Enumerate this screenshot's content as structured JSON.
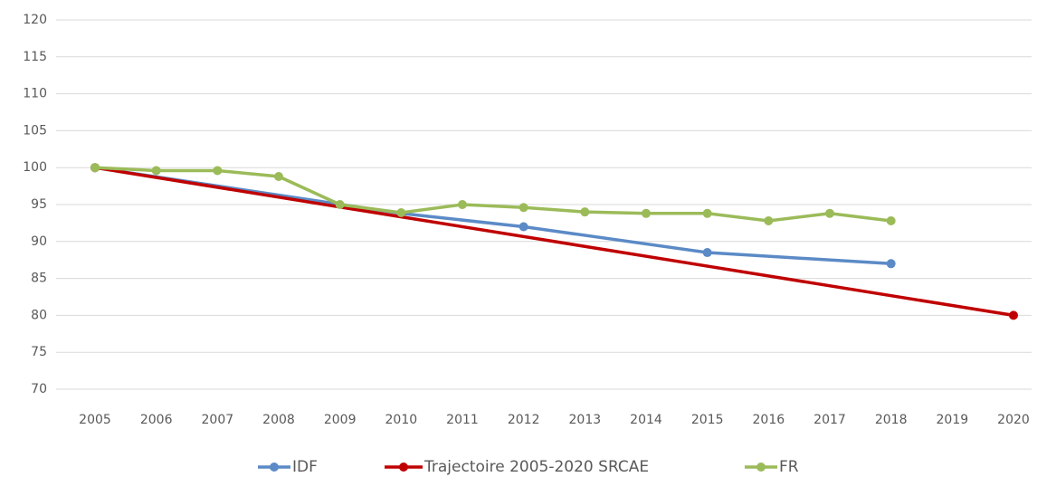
{
  "chart_data": {
    "type": "line",
    "xlim": [
      2005,
      2020
    ],
    "xticks": [
      2005,
      2006,
      2007,
      2008,
      2009,
      2010,
      2011,
      2012,
      2013,
      2014,
      2015,
      2016,
      2017,
      2018,
      2019,
      2020
    ],
    "ylim": [
      70,
      120
    ],
    "yticks": [
      70,
      75,
      80,
      85,
      90,
      95,
      100,
      105,
      110,
      115,
      120
    ],
    "grid": true,
    "legend": "bottom",
    "series": [
      {
        "name": "IDF",
        "color": "#5b8ac6",
        "x": [
          2005,
          2010,
          2012,
          2015,
          2018
        ],
        "values": [
          100,
          93.8,
          92,
          88.5,
          87
        ]
      },
      {
        "name": "Trajectoire 2005-2020 SRCAE",
        "color": "#c00000",
        "x": [
          2005,
          2020
        ],
        "values": [
          100,
          80
        ]
      },
      {
        "name": "FR",
        "color": "#9bbb59",
        "x": [
          2005,
          2006,
          2007,
          2008,
          2009,
          2010,
          2011,
          2012,
          2013,
          2014,
          2015,
          2016,
          2017,
          2018
        ],
        "values": [
          100,
          99.6,
          99.6,
          98.8,
          95,
          93.9,
          95,
          94.6,
          94,
          93.8,
          93.8,
          92.8,
          93.8,
          92.8
        ]
      }
    ]
  }
}
